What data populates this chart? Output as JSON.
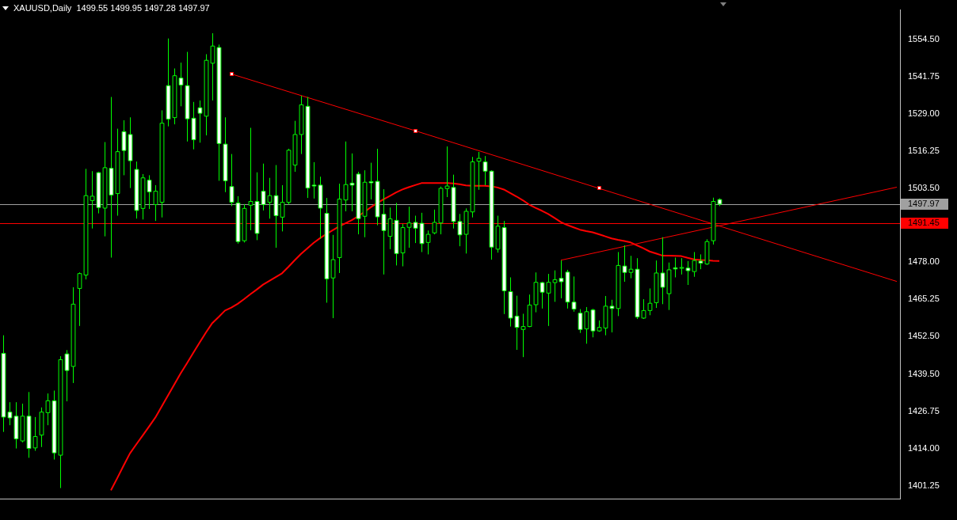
{
  "chart_data": {
    "type": "candlestick",
    "title": "XAUUSD,Daily  1499.55 1499.95 1497.28 1497.97",
    "categories": [
      null,
      null,
      null,
      null,
      null,
      null,
      null,
      null,
      null,
      null,
      null,
      null,
      null,
      null,
      null,
      null,
      null,
      null,
      null,
      null,
      null,
      null,
      null,
      null,
      null,
      null,
      null,
      null,
      null,
      null,
      null,
      null,
      null,
      null,
      null,
      null,
      null,
      null,
      null,
      null,
      null,
      null,
      null,
      null,
      null,
      null,
      null,
      null,
      null,
      null,
      null,
      null,
      null,
      null,
      null,
      null,
      null,
      null,
      null,
      null,
      null,
      null,
      null,
      null,
      null,
      null,
      null,
      null,
      null,
      null,
      null,
      null,
      null,
      null,
      null,
      null,
      null,
      null,
      null,
      null,
      null,
      null,
      null,
      null,
      null,
      null,
      null,
      null,
      null,
      null,
      null,
      null,
      null,
      null,
      null,
      null,
      null,
      null,
      null,
      null,
      null,
      null,
      null,
      null,
      null,
      null,
      null,
      null,
      null,
      null,
      null,
      null,
      null,
      null,
      null,
      null,
      null,
      null,
      null,
      null,
      null,
      null,
      null,
      null,
      null,
      null,
      null,
      null,
      null,
      null,
      null,
      null,
      null,
      null,
      null,
      null,
      null,
      null,
      null,
      null,
      null,
      null
    ],
    "ohlc": [
      [
        1446.7,
        1452.9,
        1419.7,
        1424.8
      ],
      [
        1426.5,
        1429.9,
        1422.0,
        1424.5
      ],
      [
        1425.1,
        1429.9,
        1414.0,
        1417.3
      ],
      [
        1416.6,
        1429.4,
        1416.1,
        1425.1
      ],
      [
        1425.1,
        1433.4,
        1410.8,
        1414.0
      ],
      [
        1414.2,
        1424.8,
        1413.2,
        1418.1
      ],
      [
        1418.6,
        1428.1,
        1414.5,
        1426.5
      ],
      [
        1426.3,
        1432.9,
        1422.0,
        1430.4
      ],
      [
        1430.4,
        1433.9,
        1410.2,
        1412.5
      ],
      [
        1411.7,
        1445.7,
        1400.4,
        1444.5
      ],
      [
        1446.5,
        1447.8,
        1430.2,
        1440.8
      ],
      [
        1442.2,
        1469.4,
        1436.5,
        1463.6
      ],
      [
        1469.0,
        1474.5,
        1456.1,
        1474.1
      ],
      [
        1473.6,
        1510.1,
        1472.1,
        1500.9
      ],
      [
        1499.2,
        1509.3,
        1489.6,
        1500.7
      ],
      [
        1508.8,
        1509.1,
        1494.8,
        1496.8
      ],
      [
        1496.6,
        1519.3,
        1486.9,
        1510.5
      ],
      [
        1510.3,
        1534.8,
        1479.6,
        1501.1
      ],
      [
        1501.6,
        1523.9,
        1494.0,
        1516.0
      ],
      [
        1522.9,
        1526.8,
        1507.9,
        1516.4
      ],
      [
        1521.9,
        1527.8,
        1503.5,
        1512.9
      ],
      [
        1509.9,
        1512.6,
        1493.0,
        1495.8
      ],
      [
        1496.5,
        1508.3,
        1492.7,
        1507.0
      ],
      [
        1506.2,
        1507.9,
        1496.3,
        1502.2
      ],
      [
        1497.8,
        1504.5,
        1492.2,
        1502.4
      ],
      [
        1498.6,
        1530.2,
        1493.4,
        1525.8
      ],
      [
        1538.7,
        1554.9,
        1524.7,
        1527.2
      ],
      [
        1527.7,
        1544.6,
        1525.4,
        1542.1
      ],
      [
        1541.3,
        1546.6,
        1531.6,
        1538.9
      ],
      [
        1538.7,
        1550.3,
        1519.5,
        1527.3
      ],
      [
        1527.5,
        1533.1,
        1516.8,
        1520.1
      ],
      [
        1531.1,
        1533.6,
        1519.1,
        1529.2
      ],
      [
        1528.2,
        1549.5,
        1521.6,
        1547.4
      ],
      [
        1546.4,
        1556.7,
        1533.6,
        1552.3
      ],
      [
        1551.8,
        1552.8,
        1506.0,
        1518.8
      ],
      [
        1518.6,
        1527.8,
        1502.1,
        1506.0
      ],
      [
        1504.0,
        1515.2,
        1497.3,
        1498.6
      ],
      [
        1498.4,
        1500.7,
        1484.4,
        1485.1
      ],
      [
        1485.4,
        1498.0,
        1484.8,
        1496.5
      ],
      [
        1497.6,
        1524.2,
        1489.0,
        1498.9
      ],
      [
        1498.9,
        1508.9,
        1485.6,
        1487.9
      ],
      [
        1502.4,
        1511.9,
        1495.8,
        1497.8
      ],
      [
        1498.6,
        1507.0,
        1493.0,
        1500.9
      ],
      [
        1500.9,
        1511.4,
        1483.0,
        1494.0
      ],
      [
        1493.5,
        1504.5,
        1488.6,
        1498.6
      ],
      [
        1498.6,
        1517.0,
        1497.8,
        1516.5
      ],
      [
        1511.4,
        1526.6,
        1509.1,
        1521.9
      ],
      [
        1521.9,
        1535.2,
        1515.2,
        1532.1
      ],
      [
        1531.6,
        1534.8,
        1500.1,
        1503.5
      ],
      [
        1504.5,
        1512.4,
        1499.9,
        1504.2
      ],
      [
        1504.5,
        1507.4,
        1486.1,
        1496.6
      ],
      [
        1494.8,
        1500.1,
        1464.1,
        1472.3
      ],
      [
        1472.6,
        1487.4,
        1458.8,
        1478.9
      ],
      [
        1479.6,
        1505.0,
        1474.3,
        1499.7
      ],
      [
        1499.4,
        1519.5,
        1495.5,
        1504.7
      ],
      [
        1505.2,
        1515.4,
        1495.5,
        1504.5
      ],
      [
        1508.3,
        1509.1,
        1487.6,
        1493.0
      ],
      [
        1493.8,
        1509.6,
        1486.6,
        1505.5
      ],
      [
        1505.7,
        1512.2,
        1499.6,
        1505.3
      ],
      [
        1505.8,
        1517.0,
        1490.7,
        1493.6
      ],
      [
        1494.5,
        1503.1,
        1473.8,
        1488.9
      ],
      [
        1486.9,
        1496.8,
        1482.5,
        1492.9
      ],
      [
        1492.4,
        1498.4,
        1476.9,
        1481.0
      ],
      [
        1481.2,
        1491.2,
        1476.6,
        1489.9
      ],
      [
        1490.0,
        1497.1,
        1483.0,
        1491.5
      ],
      [
        1491.7,
        1494.0,
        1484.6,
        1489.7
      ],
      [
        1491.4,
        1495.0,
        1481.5,
        1484.4
      ],
      [
        1484.8,
        1488.9,
        1480.7,
        1487.6
      ],
      [
        1488.1,
        1496.1,
        1487.6,
        1491.7
      ],
      [
        1491.5,
        1504.0,
        1487.6,
        1503.4
      ],
      [
        1503.3,
        1517.8,
        1500.4,
        1504.2
      ],
      [
        1503.7,
        1508.1,
        1489.6,
        1492.0
      ],
      [
        1492.0,
        1494.6,
        1483.5,
        1487.4
      ],
      [
        1487.6,
        1496.5,
        1481.0,
        1495.5
      ],
      [
        1495.3,
        1514.2,
        1493.4,
        1512.5
      ],
      [
        1512.7,
        1515.9,
        1502.9,
        1513.7
      ],
      [
        1512.5,
        1514.5,
        1504.5,
        1509.3
      ],
      [
        1509.3,
        1509.6,
        1478.9,
        1483.2
      ],
      [
        1482.5,
        1494.0,
        1481.3,
        1490.4
      ],
      [
        1489.9,
        1492.2,
        1460.2,
        1468.2
      ],
      [
        1467.9,
        1472.8,
        1455.9,
        1458.8
      ],
      [
        1459.5,
        1466.5,
        1447.9,
        1455.6
      ],
      [
        1454.9,
        1460.3,
        1445.4,
        1455.9
      ],
      [
        1455.9,
        1466.9,
        1455.7,
        1463.3
      ],
      [
        1463.4,
        1474.5,
        1460.8,
        1471.1
      ],
      [
        1471.0,
        1471.3,
        1462.1,
        1467.7
      ],
      [
        1467.4,
        1474.0,
        1456.1,
        1471.1
      ],
      [
        1471.0,
        1475.2,
        1464.4,
        1472.0
      ],
      [
        1472.5,
        1478.6,
        1465.6,
        1471.3
      ],
      [
        1474.6,
        1475.4,
        1462.1,
        1464.3
      ],
      [
        1464.3,
        1473.1,
        1461.0,
        1461.9
      ],
      [
        1460.5,
        1461.9,
        1453.7,
        1454.9
      ],
      [
        1455.1,
        1462.6,
        1450.0,
        1461.0
      ],
      [
        1461.6,
        1462.0,
        1452.2,
        1454.4
      ],
      [
        1454.4,
        1458.0,
        1454.1,
        1455.6
      ],
      [
        1455.4,
        1466.4,
        1452.9,
        1462.9
      ],
      [
        1462.9,
        1465.1,
        1453.9,
        1462.1
      ],
      [
        1462.1,
        1481.5,
        1459.5,
        1476.9
      ],
      [
        1476.7,
        1483.8,
        1471.3,
        1474.5
      ],
      [
        1474.5,
        1480.2,
        1472.5,
        1475.6
      ],
      [
        1475.6,
        1479.4,
        1458.5,
        1459.2
      ],
      [
        1458.8,
        1465.3,
        1458.5,
        1461.4
      ],
      [
        1461.4,
        1469.0,
        1459.8,
        1463.9
      ],
      [
        1464.1,
        1478.6,
        1462.3,
        1474.3
      ],
      [
        1474.3,
        1486.6,
        1463.6,
        1469.4
      ],
      [
        1467.2,
        1477.9,
        1461.6,
        1475.4
      ],
      [
        1476.1,
        1479.6,
        1472.8,
        1475.7
      ],
      [
        1476.1,
        1479.4,
        1473.8,
        1476.2
      ],
      [
        1476.0,
        1478.4,
        1470.2,
        1475.1
      ],
      [
        1474.8,
        1481.5,
        1473.0,
        1478.6
      ],
      [
        1478.4,
        1480.7,
        1475.6,
        1477.7
      ],
      [
        1477.4,
        1485.9,
        1477.1,
        1485.1
      ],
      [
        1485.4,
        1500.2,
        1484.1,
        1498.9
      ],
      [
        1499.55,
        1499.95,
        1497.28,
        1497.97
      ],
      null,
      null,
      null,
      null,
      null,
      null,
      null,
      null,
      null,
      null,
      null,
      null,
      null,
      null,
      null,
      null,
      null,
      null,
      null,
      null,
      null,
      null,
      null,
      null,
      null,
      null,
      null,
      null
    ],
    "series": [
      {
        "type": "line",
        "color": "#ff0000",
        "values": [
          null,
          null,
          null,
          null,
          null,
          null,
          null,
          null,
          null,
          null,
          null,
          null,
          null,
          null,
          null,
          null,
          null,
          1399.6,
          1403.8,
          1408.1,
          1412.3,
          1415.4,
          1418.4,
          1421.5,
          1424.6,
          1428.4,
          1432.2,
          1436.0,
          1439.8,
          1443.3,
          1446.9,
          1450.4,
          1453.9,
          1457.1,
          1459.2,
          1461.4,
          1462.4,
          1463.7,
          1465.3,
          1467.0,
          1468.6,
          1470.3,
          1471.6,
          1472.9,
          1474.2,
          1476.4,
          1478.7,
          1480.9,
          1482.8,
          1484.7,
          1486.3,
          1487.7,
          1489.0,
          1490.3,
          1491.4,
          1492.5,
          1493.8,
          1495.3,
          1496.9,
          1498.3,
          1499.6,
          1500.8,
          1502.0,
          1503.0,
          1503.8,
          1504.5,
          1505.2,
          1505.2,
          1505.2,
          1505.2,
          1505.2,
          1505.1,
          1504.8,
          1504.4,
          1504.3,
          1504.3,
          1504.3,
          1504.1,
          1503.7,
          1503.0,
          1501.8,
          1500.6,
          1499.3,
          1497.8,
          1496.7,
          1495.7,
          1494.6,
          1493.2,
          1491.8,
          1490.8,
          1490.0,
          1489.2,
          1488.7,
          1488.3,
          1487.6,
          1486.9,
          1486.2,
          1485.7,
          1485.3,
          1484.8,
          1483.8,
          1482.8,
          1481.7,
          1481.0,
          1480.3,
          1480.3,
          1480.2,
          1480.1,
          1479.5,
          1479.0,
          1478.8,
          1478.7,
          1478.5,
          1478.4,
          null,
          null,
          null,
          null,
          null,
          null,
          null,
          null,
          null,
          null,
          null,
          null,
          null,
          null,
          null,
          null,
          null,
          null,
          null,
          null,
          null,
          null,
          null,
          null,
          null,
          null,
          null,
          null
        ]
      },
      {
        "type": "line",
        "color": "#ff0000",
        "values": [
          null,
          null,
          null,
          null,
          null,
          null,
          null,
          null,
          null,
          null,
          null,
          null,
          null,
          null,
          null,
          null,
          null,
          null,
          null,
          null,
          null,
          null,
          null,
          null,
          null,
          null,
          null,
          null,
          null,
          null,
          null,
          null,
          null,
          null,
          null,
          null,
          1542.7,
          null,
          null,
          null,
          null,
          null,
          null,
          null,
          null,
          null,
          null,
          null,
          null,
          null,
          null,
          null,
          null,
          null,
          null,
          null,
          null,
          null,
          null,
          null,
          null,
          null,
          null,
          null,
          null,
          1523.2,
          null,
          null,
          null,
          null,
          null,
          null,
          null,
          null,
          null,
          null,
          null,
          null,
          null,
          null,
          null,
          null,
          null,
          null,
          null,
          null,
          null,
          null,
          null,
          null,
          null,
          null,
          null,
          null,
          1503.4,
          null,
          null,
          null,
          null,
          null,
          null,
          null,
          null,
          null,
          null,
          null,
          null,
          null,
          null,
          null,
          null,
          null,
          null,
          null,
          null,
          null,
          null,
          null,
          null,
          null,
          null,
          null,
          null,
          null,
          null,
          null,
          null,
          null,
          null,
          null,
          null,
          null,
          null,
          null,
          null,
          null,
          null,
          null,
          null,
          null,
          null,
          1471.4
        ]
      },
      {
        "type": "line",
        "color": "#ff0000",
        "values": [
          null,
          null,
          null,
          null,
          null,
          null,
          null,
          null,
          null,
          null,
          null,
          null,
          null,
          null,
          null,
          null,
          null,
          null,
          null,
          null,
          null,
          null,
          null,
          null,
          null,
          null,
          null,
          null,
          null,
          null,
          null,
          null,
          null,
          null,
          null,
          null,
          null,
          null,
          null,
          null,
          null,
          null,
          null,
          null,
          null,
          null,
          null,
          null,
          null,
          null,
          null,
          null,
          null,
          null,
          null,
          null,
          null,
          null,
          null,
          null,
          null,
          null,
          null,
          null,
          null,
          null,
          null,
          null,
          null,
          null,
          null,
          null,
          null,
          null,
          null,
          null,
          null,
          null,
          null,
          null,
          null,
          null,
          null,
          null,
          null,
          null,
          null,
          null,
          1478.7,
          null,
          null,
          null,
          null,
          null,
          null,
          null,
          null,
          null,
          null,
          null,
          null,
          null,
          null,
          null,
          null,
          null,
          null,
          null,
          null,
          null,
          null,
          null,
          null,
          null,
          null,
          null,
          null,
          null,
          null,
          null,
          null,
          null,
          null,
          null,
          null,
          null,
          null,
          null,
          null,
          null,
          null,
          null,
          null,
          null,
          null,
          null,
          null,
          null,
          null,
          null,
          null,
          1503.8
        ]
      }
    ],
    "ref_lines": [
      {
        "axis": "y",
        "value": 1497.97,
        "label": "1497.97",
        "color": "#a0a0a0"
      },
      {
        "axis": "y",
        "value": 1491.45,
        "label": "1491.45",
        "color": "#ff0000"
      }
    ],
    "ylim": [
      1396.6,
      1564.7
    ],
    "yticks": [
      {
        "value": 1554.5,
        "label": "1554.50"
      },
      {
        "value": 1541.75,
        "label": "1541.75"
      },
      {
        "value": 1529,
        "label": "1529.00"
      },
      {
        "value": 1516.25,
        "label": "1516.25"
      },
      {
        "value": 1503.5,
        "label": "1503.50"
      },
      {
        "value": 1478,
        "label": "1478.00"
      },
      {
        "value": 1465.25,
        "label": "1465.25"
      },
      {
        "value": 1452.5,
        "label": "1452.50"
      },
      {
        "value": 1439.5,
        "label": "1439.50"
      },
      {
        "value": 1426.75,
        "label": "1426.75"
      },
      {
        "value": 1414,
        "label": "1414.00"
      },
      {
        "value": 1401.25,
        "label": "1401.25"
      }
    ],
    "grid": false
  }
}
